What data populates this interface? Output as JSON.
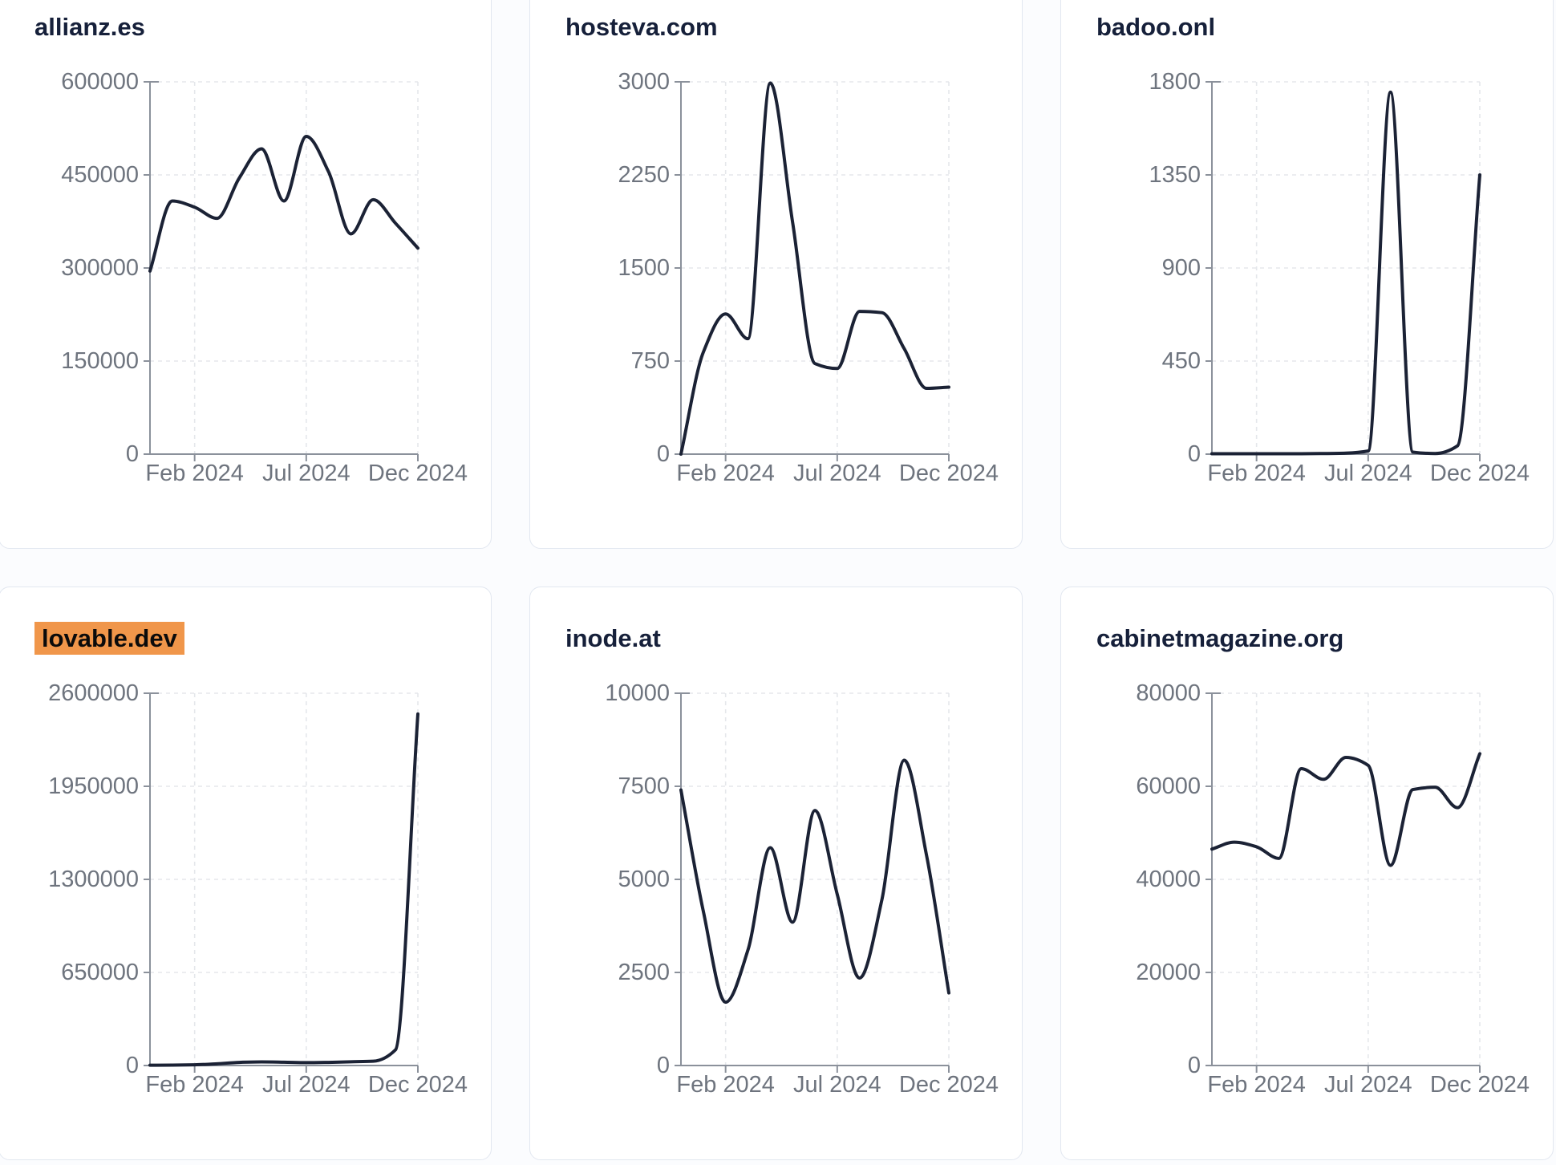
{
  "page": {
    "kind": "domain-traffic-dashboard",
    "highlight_color": "#f0964a",
    "line_color": "#1b2235",
    "title_color": "#16203a",
    "axis_color": "#8b919b",
    "tick_label_color": "#6e747e",
    "gridline_color": "#e5e7eb",
    "card_border_color": "#e2e7f0",
    "card_background": "#ffffff",
    "page_background": "#fbfcfe"
  },
  "chart_data": [
    {
      "type": "line",
      "title": "allianz.es",
      "highlighted": false,
      "x": [
        "Dec 2023",
        "Jan 2024",
        "Feb 2024",
        "Mar 2024",
        "Apr 2024",
        "May 2024",
        "Jun 2024",
        "Jul 2024",
        "Aug 2024",
        "Sep 2024",
        "Oct 2024",
        "Nov 2024",
        "Dec 2024"
      ],
      "values": [
        295000,
        408000,
        398000,
        380000,
        445000,
        492000,
        408000,
        512000,
        455000,
        355000,
        410000,
        372000,
        332000
      ],
      "y_ticks": [
        0,
        150000,
        300000,
        450000,
        600000
      ],
      "ylim": [
        0,
        600000
      ],
      "x_tick_labels": [
        "Feb 2024",
        "Jul 2024",
        "Dec 2024"
      ],
      "x_tick_indices": [
        2,
        7,
        12
      ],
      "grid": true,
      "legend": "none"
    },
    {
      "type": "line",
      "title": "hosteva.com",
      "highlighted": false,
      "x": [
        "Dec 2023",
        "Jan 2024",
        "Feb 2024",
        "Mar 2024",
        "Apr 2024",
        "May 2024",
        "Jun 2024",
        "Jul 2024",
        "Aug 2024",
        "Sep 2024",
        "Oct 2024",
        "Nov 2024",
        "Dec 2024"
      ],
      "values": [
        0,
        820,
        1130,
        930,
        2990,
        1870,
        730,
        690,
        1150,
        1140,
        850,
        530,
        540
      ],
      "y_ticks": [
        0,
        750,
        1500,
        2250,
        3000
      ],
      "ylim": [
        0,
        3000
      ],
      "x_tick_labels": [
        "Feb 2024",
        "Jul 2024",
        "Dec 2024"
      ],
      "x_tick_indices": [
        2,
        7,
        12
      ],
      "grid": true,
      "legend": "none"
    },
    {
      "type": "line",
      "title": "badoo.onl",
      "highlighted": false,
      "x": [
        "Dec 2023",
        "Jan 2024",
        "Feb 2024",
        "Mar 2024",
        "Apr 2024",
        "May 2024",
        "Jun 2024",
        "Jul 2024",
        "Aug 2024",
        "Sep 2024",
        "Oct 2024",
        "Nov 2024",
        "Dec 2024"
      ],
      "values": [
        2,
        2,
        2,
        2,
        2,
        3,
        5,
        15,
        1750,
        10,
        3,
        40,
        1350
      ],
      "y_ticks": [
        0,
        450,
        900,
        1350,
        1800
      ],
      "ylim": [
        0,
        1800
      ],
      "x_tick_labels": [
        "Feb 2024",
        "Jul 2024",
        "Dec 2024"
      ],
      "x_tick_indices": [
        2,
        7,
        12
      ],
      "grid": true,
      "legend": "none"
    },
    {
      "type": "line",
      "title": "lovable.dev",
      "highlighted": true,
      "x": [
        "Dec 2023",
        "Jan 2024",
        "Feb 2024",
        "Mar 2024",
        "Apr 2024",
        "May 2024",
        "Jun 2024",
        "Jul 2024",
        "Aug 2024",
        "Sep 2024",
        "Oct 2024",
        "Nov 2024",
        "Dec 2024"
      ],
      "values": [
        2000,
        3000,
        5000,
        12000,
        22000,
        25000,
        23000,
        20000,
        22000,
        26000,
        30000,
        110000,
        2455000
      ],
      "y_ticks": [
        0,
        650000,
        1300000,
        1950000,
        2600000
      ],
      "ylim": [
        0,
        2600000
      ],
      "x_tick_labels": [
        "Feb 2024",
        "Jul 2024",
        "Dec 2024"
      ],
      "x_tick_indices": [
        2,
        7,
        12
      ],
      "grid": true,
      "legend": "none"
    },
    {
      "type": "line",
      "title": "inode.at",
      "highlighted": false,
      "x": [
        "Dec 2023",
        "Jan 2024",
        "Feb 2024",
        "Mar 2024",
        "Apr 2024",
        "May 2024",
        "Jun 2024",
        "Jul 2024",
        "Aug 2024",
        "Sep 2024",
        "Oct 2024",
        "Nov 2024",
        "Dec 2024"
      ],
      "values": [
        7400,
        4150,
        1700,
        3100,
        5850,
        3850,
        6850,
        4600,
        2350,
        4450,
        8200,
        5650,
        1950
      ],
      "y_ticks": [
        0,
        2500,
        5000,
        7500,
        10000
      ],
      "ylim": [
        0,
        10000
      ],
      "x_tick_labels": [
        "Feb 2024",
        "Jul 2024",
        "Dec 2024"
      ],
      "x_tick_indices": [
        2,
        7,
        12
      ],
      "grid": true,
      "legend": "none"
    },
    {
      "type": "line",
      "title": "cabinetmagazine.org",
      "highlighted": false,
      "x": [
        "Dec 2023",
        "Jan 2024",
        "Feb 2024",
        "Mar 2024",
        "Apr 2024",
        "May 2024",
        "Jun 2024",
        "Jul 2024",
        "Aug 2024",
        "Sep 2024",
        "Oct 2024",
        "Nov 2024",
        "Dec 2024"
      ],
      "values": [
        46500,
        48000,
        47000,
        44500,
        63800,
        61500,
        66200,
        64500,
        43000,
        59300,
        59800,
        55400,
        67000
      ],
      "y_ticks": [
        0,
        20000,
        40000,
        60000,
        80000
      ],
      "ylim": [
        0,
        80000
      ],
      "x_tick_labels": [
        "Feb 2024",
        "Jul 2024",
        "Dec 2024"
      ],
      "x_tick_indices": [
        2,
        7,
        12
      ],
      "grid": true,
      "legend": "none"
    }
  ]
}
